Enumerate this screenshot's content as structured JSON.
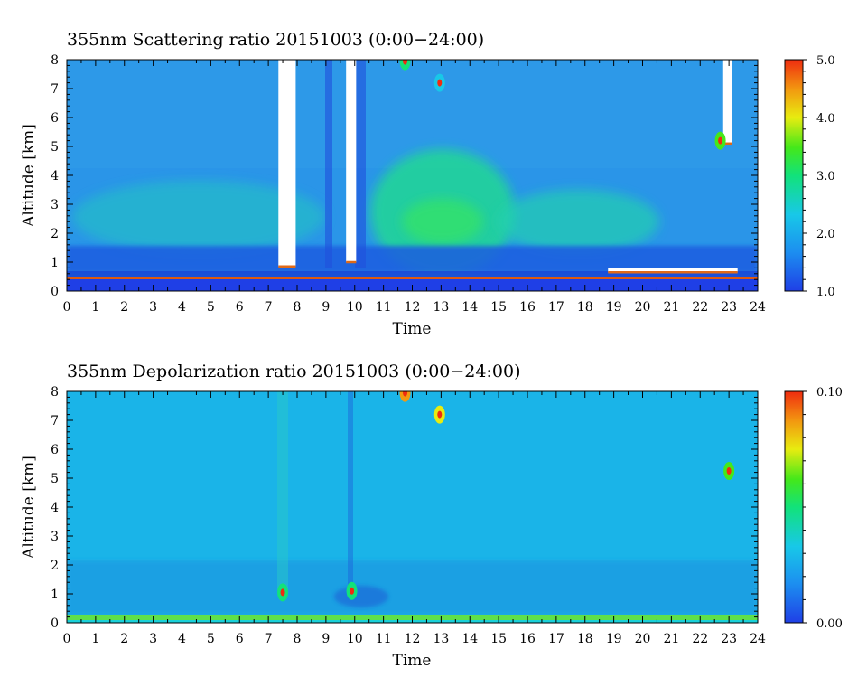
{
  "chart_data": [
    {
      "type": "heatmap",
      "title": "355nm Scattering ratio  20151003 (0:00−24:00)",
      "xlabel": "Time",
      "ylabel": "Altitude [km]",
      "xlim": [
        0,
        24
      ],
      "ylim": [
        0,
        8
      ],
      "xticks": [
        "0",
        "1",
        "2",
        "3",
        "4",
        "5",
        "6",
        "7",
        "8",
        "9",
        "10",
        "11",
        "12",
        "13",
        "14",
        "15",
        "16",
        "17",
        "18",
        "19",
        "20",
        "21",
        "22",
        "23",
        "24"
      ],
      "yticks": [
        "0",
        "1",
        "2",
        "3",
        "4",
        "5",
        "6",
        "7",
        "8"
      ],
      "colorbar": {
        "range": [
          1.0,
          5.0
        ],
        "ticks": [
          "1.0",
          "2.0",
          "3.0",
          "4.0",
          "5.0"
        ],
        "tick_values": [
          1.0,
          2.0,
          3.0,
          4.0,
          5.0
        ]
      },
      "background_value": 1.6,
      "features": [
        {
          "kind": "cloud",
          "t0": 7.35,
          "t1": 7.95,
          "z0": 0.85,
          "z1": 8.0
        },
        {
          "kind": "cloud",
          "t0": 9.7,
          "t1": 10.05,
          "z0": 1.0,
          "z1": 8.0
        },
        {
          "kind": "cloud",
          "t0": 22.8,
          "t1": 23.1,
          "z0": 5.1,
          "z1": 8.0
        },
        {
          "kind": "cloud",
          "t0": 18.8,
          "t1": 23.3,
          "z0": 0.65,
          "z1": 0.8
        },
        {
          "kind": "high_value",
          "t": 11.75,
          "z": 7.95,
          "value": 3.0
        },
        {
          "kind": "high_value",
          "t": 12.95,
          "z": 7.2,
          "value": 2.9
        },
        {
          "kind": "high_value",
          "t": 22.7,
          "z": 5.2,
          "value": 3.5
        },
        {
          "kind": "enhanced_layer",
          "t0": 11.0,
          "t1": 15.0,
          "z0": 1.5,
          "z1": 5.0,
          "value": 2.4
        }
      ]
    },
    {
      "type": "heatmap",
      "title": "355nm Depolarization ratio  20151003 (0:00−24:00)",
      "xlabel": "Time",
      "ylabel": "Altitude [km]",
      "xlim": [
        0,
        24
      ],
      "ylim": [
        0,
        8
      ],
      "xticks": [
        "0",
        "1",
        "2",
        "3",
        "4",
        "5",
        "6",
        "7",
        "8",
        "9",
        "10",
        "11",
        "12",
        "13",
        "14",
        "15",
        "16",
        "17",
        "18",
        "19",
        "20",
        "21",
        "22",
        "23",
        "24"
      ],
      "yticks": [
        "0",
        "1",
        "2",
        "3",
        "4",
        "5",
        "6",
        "7",
        "8"
      ],
      "colorbar": {
        "range": [
          0.0,
          0.1
        ],
        "ticks": [
          "0.00",
          "0.10"
        ],
        "tick_values": [
          0.0,
          0.1
        ]
      },
      "background_value": 0.03,
      "features": [
        {
          "kind": "high_value",
          "t": 7.5,
          "z": 1.05,
          "value": 0.06
        },
        {
          "kind": "high_value",
          "t": 9.9,
          "z": 1.1,
          "value": 0.055
        },
        {
          "kind": "high_value",
          "t": 11.75,
          "z": 7.95,
          "value": 0.09
        },
        {
          "kind": "high_value",
          "t": 12.95,
          "z": 7.2,
          "value": 0.085
        },
        {
          "kind": "high_value",
          "t": 23.0,
          "z": 5.25,
          "value": 0.07
        },
        {
          "kind": "surface_layer",
          "z0": 0.0,
          "z1": 0.2,
          "value": 0.05
        }
      ]
    }
  ]
}
